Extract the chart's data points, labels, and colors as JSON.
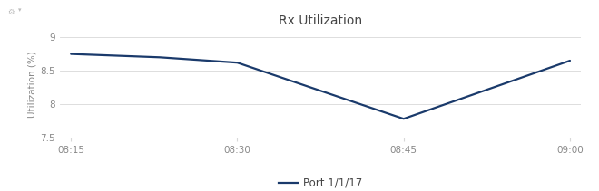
{
  "title": "Rx Utilization",
  "xlabel": "",
  "ylabel": "Utilization (%)",
  "x_labels": [
    "08:15",
    "08:30",
    "08:45",
    "09:00"
  ],
  "x_tick_positions": [
    0,
    15,
    30,
    45
  ],
  "x_points": [
    0,
    8,
    15,
    30,
    45
  ],
  "y_points": [
    8.75,
    8.7,
    8.62,
    7.78,
    8.65
  ],
  "xlim": [
    -1,
    46
  ],
  "ylim": [
    7.5,
    9.1
  ],
  "yticks": [
    7.5,
    8.0,
    8.5,
    9.0
  ],
  "ytick_labels": [
    "7.5",
    "8",
    "8.5",
    "9"
  ],
  "line_color": "#1a3a6b",
  "line_width": 1.6,
  "legend_label": "Port 1/1/17",
  "background_color": "#ffffff",
  "grid_color": "#d8d8d8",
  "tick_label_color": "#888888",
  "title_color": "#444444",
  "font_size_title": 10,
  "font_size_axis": 7.5,
  "font_size_ticks": 7.5,
  "font_size_legend": 8.5,
  "legend_line_color": "#1a3a6b"
}
